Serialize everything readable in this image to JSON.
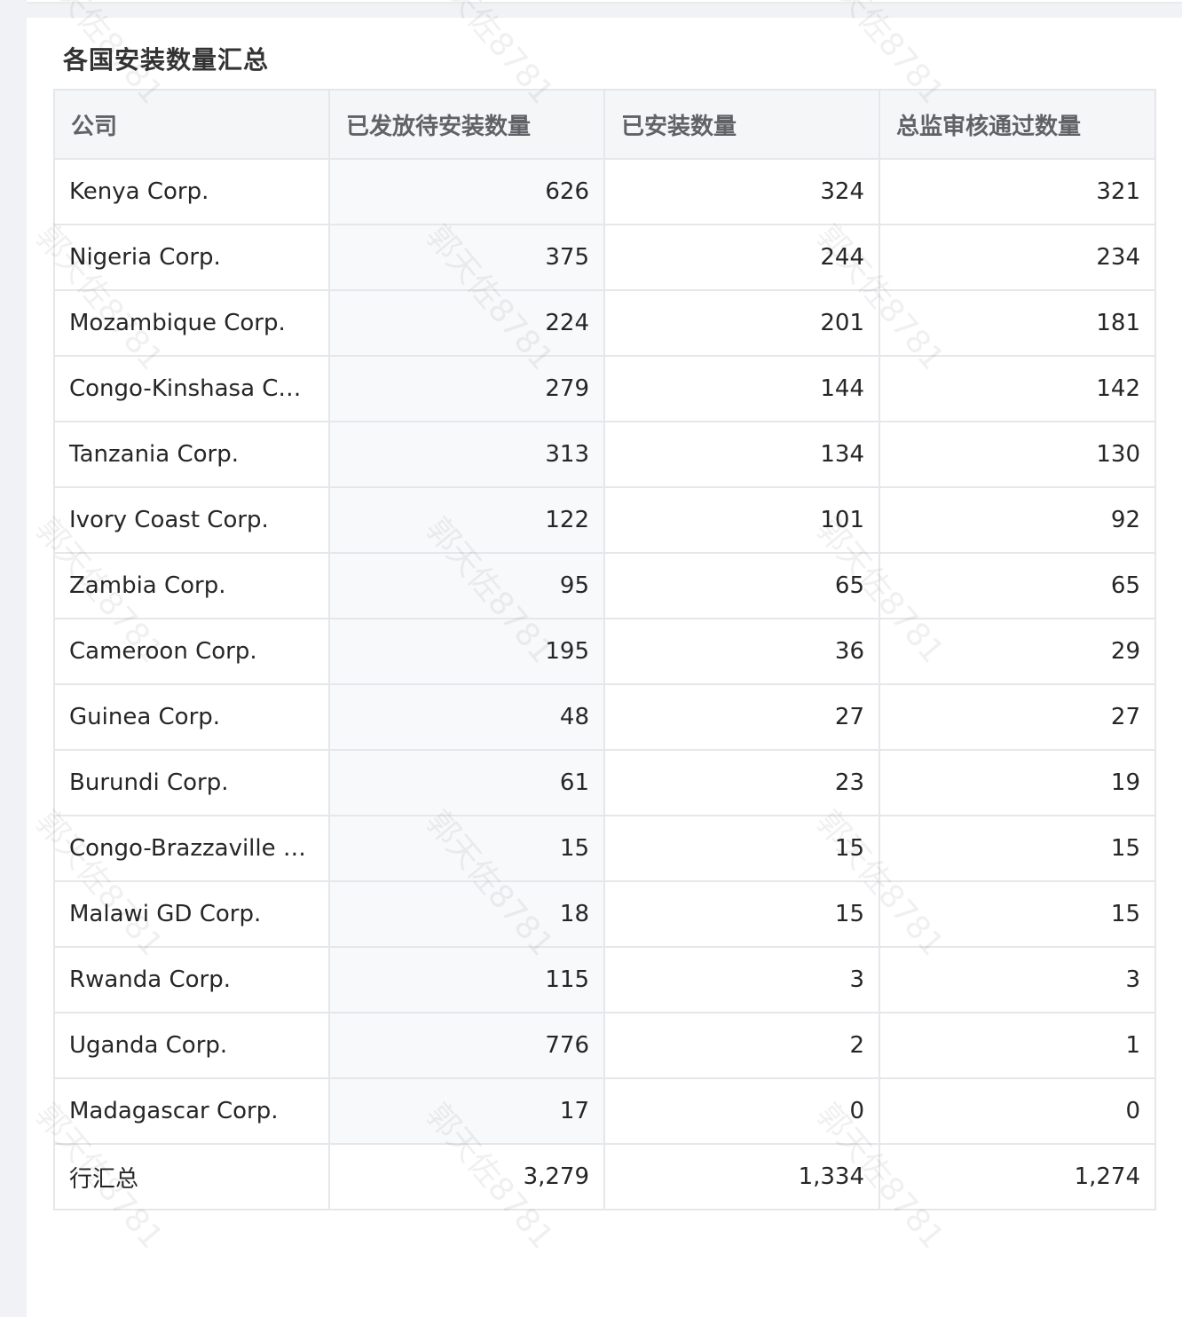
{
  "card": {
    "title": "各国安装数量汇总"
  },
  "table": {
    "columns": [
      "公司",
      "已发放待安装数量",
      "已安装数量",
      "总监审核通过数量"
    ],
    "rows": [
      {
        "company": "Kenya Corp.",
        "distributed": "626",
        "installed": "324",
        "approved": "321"
      },
      {
        "company": "Nigeria Corp.",
        "distributed": "375",
        "installed": "244",
        "approved": "234"
      },
      {
        "company": "Mozambique Corp.",
        "distributed": "224",
        "installed": "201",
        "approved": "181"
      },
      {
        "company": "Congo-Kinshasa C…",
        "distributed": "279",
        "installed": "144",
        "approved": "142"
      },
      {
        "company": "Tanzania Corp.",
        "distributed": "313",
        "installed": "134",
        "approved": "130"
      },
      {
        "company": "Ivory Coast Corp.",
        "distributed": "122",
        "installed": "101",
        "approved": "92"
      },
      {
        "company": "Zambia Corp.",
        "distributed": "95",
        "installed": "65",
        "approved": "65"
      },
      {
        "company": "Cameroon Corp.",
        "distributed": "195",
        "installed": "36",
        "approved": "29"
      },
      {
        "company": "Guinea Corp.",
        "distributed": "48",
        "installed": "27",
        "approved": "27"
      },
      {
        "company": "Burundi Corp.",
        "distributed": "61",
        "installed": "23",
        "approved": "19"
      },
      {
        "company": "Congo-Brazzaville …",
        "distributed": "15",
        "installed": "15",
        "approved": "15"
      },
      {
        "company": "Malawi GD Corp.",
        "distributed": "18",
        "installed": "15",
        "approved": "15"
      },
      {
        "company": "Rwanda Corp.",
        "distributed": "115",
        "installed": "3",
        "approved": "3"
      },
      {
        "company": "Uganda Corp.",
        "distributed": "776",
        "installed": "2",
        "approved": "1"
      },
      {
        "company": "Madagascar Corp.",
        "distributed": "17",
        "installed": "0",
        "approved": "0"
      }
    ],
    "total": {
      "label": "行汇总",
      "distributed": "3,279",
      "installed": "1,334",
      "approved": "1,274"
    }
  },
  "watermark": {
    "text": "郭天佐8781"
  }
}
